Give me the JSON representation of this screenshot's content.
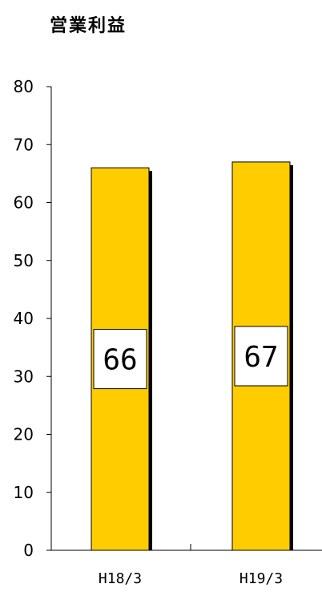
{
  "chart_data": {
    "type": "bar",
    "title": "営業利益",
    "categories": [
      "H18/3",
      "H19/3"
    ],
    "values": [
      66,
      67
    ],
    "data_labels": [
      "66",
      "67"
    ],
    "ylim": [
      0,
      80
    ],
    "yticks": [
      0,
      10,
      20,
      30,
      40,
      50,
      60,
      70,
      80
    ],
    "ytick_labels": [
      "0",
      "10",
      "20",
      "30",
      "40",
      "50",
      "60",
      "70",
      "80"
    ],
    "grid": false,
    "legend": "none",
    "colors": {
      "bar_fill": "#ffcc00",
      "bar_outline": "#000000",
      "bar_shadow": "#000000",
      "label_box": "#ffffff",
      "axis": "#000000"
    }
  }
}
